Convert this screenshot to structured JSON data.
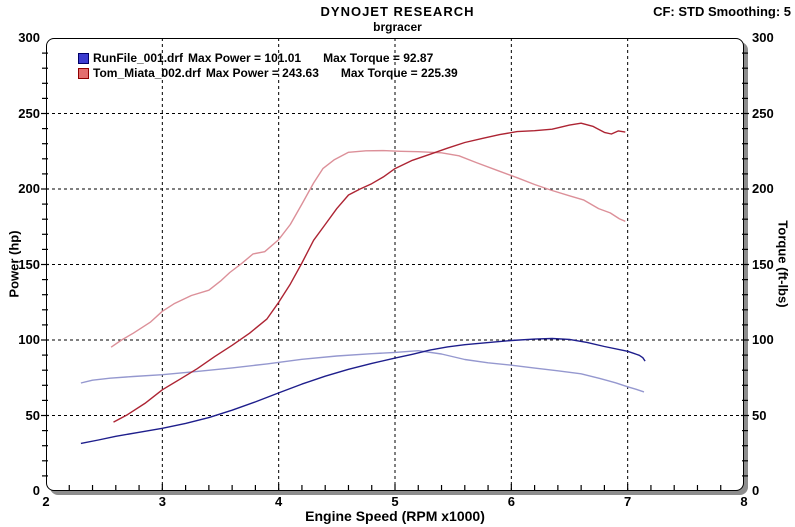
{
  "header": {
    "title": "DYNOJET RESEARCH",
    "subtitle": "brgracer",
    "cf_note": "CF: STD  Smoothing: 5"
  },
  "legend": [
    {
      "file": "RunFile_001.drf",
      "power_label": "Max Power = 101.01",
      "torque_label": "Max Torque = 92.87",
      "swatch_fill": "#3c3cd0",
      "swatch_border": "#000066"
    },
    {
      "file": "Tom_Miata_002.drf",
      "power_label": "Max Power = 243.63",
      "torque_label": "Max Torque = 225.39",
      "swatch_fill": "#e46e6e",
      "swatch_border": "#8f0000"
    }
  ],
  "colors": {
    "run1_power": "#1e1e8c",
    "run1_torque": "#9598cf",
    "run2_power": "#ad2433",
    "run2_torque": "#dc9099",
    "grid": "#000000",
    "shadow": "#8d8d8d",
    "background": "#ffffff"
  },
  "chart_data": {
    "type": "line",
    "title": "DYNOJET RESEARCH",
    "subtitle": "brgracer",
    "corner_note": "CF: STD  Smoothing: 5",
    "xlabel": "Engine Speed (RPM x1000)",
    "ylabel_left": "Power (hp)",
    "ylabel_right": "Torque (ft-lbs)",
    "xlim": [
      2,
      8
    ],
    "ylim": [
      0,
      300
    ],
    "x_ticks": [
      2,
      3,
      4,
      5,
      6,
      7,
      8
    ],
    "y_ticks": [
      0,
      50,
      100,
      150,
      200,
      250,
      300
    ],
    "x_minor_step": 0.2,
    "y_minor_step": 10,
    "grid": "dashed",
    "legend_position": "top-left-inside",
    "series": [
      {
        "name": "RunFile_001.drf Torque",
        "axis": "right (ft-lbs)",
        "max": 92.87,
        "color": "#9598cf",
        "points": [
          [
            2.3,
            71.5
          ],
          [
            2.4,
            73.4
          ],
          [
            2.55,
            74.7
          ],
          [
            2.75,
            75.8
          ],
          [
            3.0,
            77.0
          ],
          [
            3.3,
            79.2
          ],
          [
            3.6,
            81.5
          ],
          [
            3.9,
            84.2
          ],
          [
            4.2,
            87.2
          ],
          [
            4.5,
            89.4
          ],
          [
            4.8,
            90.9
          ],
          [
            5.0,
            91.8
          ],
          [
            5.2,
            92.9
          ],
          [
            5.4,
            90.7
          ],
          [
            5.6,
            87.1
          ],
          [
            5.8,
            84.9
          ],
          [
            6.0,
            83.3
          ],
          [
            6.2,
            81.4
          ],
          [
            6.4,
            79.6
          ],
          [
            6.6,
            77.6
          ],
          [
            6.76,
            74.6
          ],
          [
            6.9,
            71.6
          ],
          [
            7.0,
            69.0
          ],
          [
            7.07,
            67.4
          ],
          [
            7.14,
            65.6
          ]
        ]
      },
      {
        "name": "Tom_Miata_002.drf Torque",
        "axis": "right (ft-lbs)",
        "max": 225.39,
        "color": "#dc9099",
        "points": [
          [
            2.56,
            95.2
          ],
          [
            2.65,
            100.0
          ],
          [
            2.75,
            104.5
          ],
          [
            2.9,
            112.0
          ],
          [
            3.0,
            119.0
          ],
          [
            3.1,
            124.0
          ],
          [
            3.25,
            129.5
          ],
          [
            3.4,
            133.0
          ],
          [
            3.5,
            139.0
          ],
          [
            3.58,
            144.7
          ],
          [
            3.68,
            150.5
          ],
          [
            3.78,
            157.0
          ],
          [
            3.88,
            158.5
          ],
          [
            4.0,
            166.5
          ],
          [
            4.1,
            176.5
          ],
          [
            4.2,
            190.0
          ],
          [
            4.3,
            204.0
          ],
          [
            4.38,
            213.5
          ],
          [
            4.48,
            219.5
          ],
          [
            4.6,
            224.3
          ],
          [
            4.75,
            225.3
          ],
          [
            4.9,
            225.4
          ],
          [
            5.05,
            225.0
          ],
          [
            5.2,
            224.7
          ],
          [
            5.4,
            224.0
          ],
          [
            5.55,
            222.0
          ],
          [
            5.7,
            217.5
          ],
          [
            5.9,
            211.7
          ],
          [
            6.05,
            207.5
          ],
          [
            6.2,
            203.0
          ],
          [
            6.35,
            199.0
          ],
          [
            6.5,
            195.5
          ],
          [
            6.62,
            192.8
          ],
          [
            6.75,
            187.0
          ],
          [
            6.85,
            184.2
          ],
          [
            6.93,
            180.2
          ],
          [
            6.98,
            178.6
          ]
        ]
      },
      {
        "name": "RunFile_001.drf Power",
        "axis": "left (hp)",
        "max": 101.01,
        "color": "#1e1e8c",
        "points": [
          [
            2.3,
            31.5
          ],
          [
            2.45,
            33.8
          ],
          [
            2.6,
            36.2
          ],
          [
            2.8,
            38.9
          ],
          [
            3.0,
            41.5
          ],
          [
            3.2,
            44.8
          ],
          [
            3.4,
            48.6
          ],
          [
            3.6,
            53.5
          ],
          [
            3.8,
            59.0
          ],
          [
            4.0,
            65.0
          ],
          [
            4.2,
            70.8
          ],
          [
            4.4,
            76.0
          ],
          [
            4.6,
            80.6
          ],
          [
            4.8,
            84.5
          ],
          [
            5.0,
            88.0
          ],
          [
            5.15,
            90.5
          ],
          [
            5.3,
            93.3
          ],
          [
            5.45,
            95.4
          ],
          [
            5.6,
            96.9
          ],
          [
            5.8,
            98.3
          ],
          [
            6.0,
            99.7
          ],
          [
            6.2,
            100.6
          ],
          [
            6.35,
            101.0
          ],
          [
            6.5,
            100.4
          ],
          [
            6.65,
            98.4
          ],
          [
            6.8,
            95.7
          ],
          [
            7.0,
            92.5
          ],
          [
            7.1,
            89.9
          ],
          [
            7.13,
            88.3
          ],
          [
            7.15,
            86.0
          ]
        ]
      },
      {
        "name": "Tom_Miata_002.drf Power",
        "axis": "left (hp)",
        "max": 243.63,
        "color": "#ad2433",
        "points": [
          [
            2.58,
            45.6
          ],
          [
            2.7,
            50.5
          ],
          [
            2.85,
            58.0
          ],
          [
            3.0,
            67.0
          ],
          [
            3.15,
            74.0
          ],
          [
            3.3,
            81.0
          ],
          [
            3.45,
            89.0
          ],
          [
            3.6,
            96.5
          ],
          [
            3.75,
            104.5
          ],
          [
            3.9,
            114.0
          ],
          [
            4.0,
            125.0
          ],
          [
            4.1,
            137.0
          ],
          [
            4.2,
            151.0
          ],
          [
            4.3,
            166.0
          ],
          [
            4.4,
            176.5
          ],
          [
            4.5,
            187.0
          ],
          [
            4.6,
            196.0
          ],
          [
            4.7,
            200.0
          ],
          [
            4.8,
            203.5
          ],
          [
            4.9,
            208.0
          ],
          [
            5.0,
            213.5
          ],
          [
            5.15,
            219.0
          ],
          [
            5.3,
            223.0
          ],
          [
            5.45,
            227.0
          ],
          [
            5.6,
            230.8
          ],
          [
            5.75,
            233.5
          ],
          [
            5.9,
            236.0
          ],
          [
            6.05,
            238.0
          ],
          [
            6.2,
            238.6
          ],
          [
            6.35,
            239.6
          ],
          [
            6.5,
            242.3
          ],
          [
            6.6,
            243.6
          ],
          [
            6.7,
            241.5
          ],
          [
            6.8,
            237.5
          ],
          [
            6.86,
            236.4
          ],
          [
            6.92,
            238.5
          ],
          [
            6.98,
            237.7
          ]
        ]
      }
    ]
  }
}
